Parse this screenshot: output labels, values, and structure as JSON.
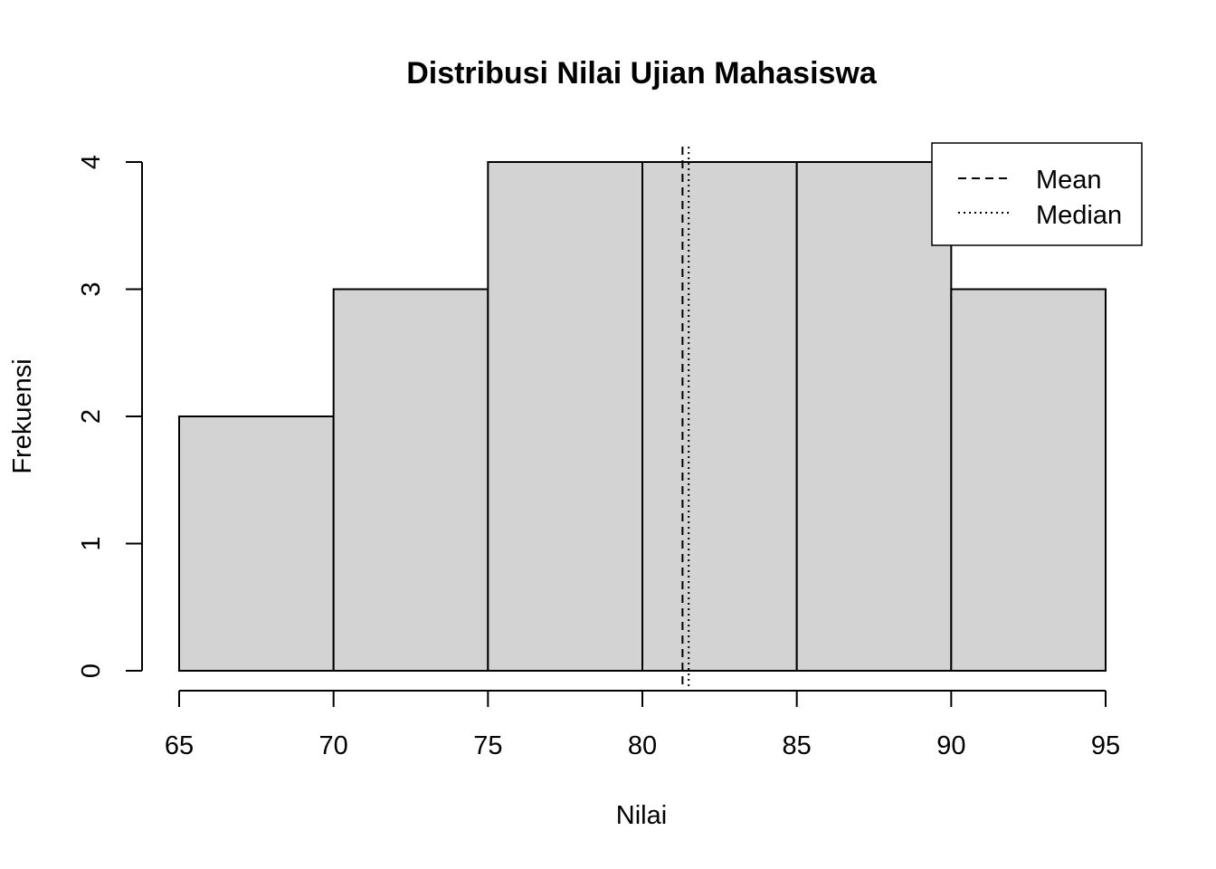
{
  "chart_data": {
    "type": "bar",
    "title": "Distribusi Nilai Ujian Mahasiswa",
    "xlabel": "Nilai",
    "ylabel": "Frekuensi",
    "bins": [
      {
        "start": 65,
        "end": 70,
        "count": 2
      },
      {
        "start": 70,
        "end": 75,
        "count": 3
      },
      {
        "start": 75,
        "end": 80,
        "count": 4
      },
      {
        "start": 80,
        "end": 85,
        "count": 4
      },
      {
        "start": 85,
        "end": 90,
        "count": 4
      },
      {
        "start": 90,
        "end": 95,
        "count": 3
      }
    ],
    "x_ticks": [
      65,
      70,
      75,
      80,
      85,
      90,
      95
    ],
    "y_ticks": [
      0,
      1,
      2,
      3,
      4
    ],
    "xlim": [
      65,
      95
    ],
    "ylim": [
      0,
      4
    ],
    "mean": 81.3,
    "median": 81.5,
    "grid": false,
    "bar_color": "#d3d3d3",
    "legend": {
      "placement": "top-right",
      "entries": [
        {
          "label": "Mean",
          "line_style": "dashed"
        },
        {
          "label": "Median",
          "line_style": "dotted"
        }
      ]
    }
  }
}
